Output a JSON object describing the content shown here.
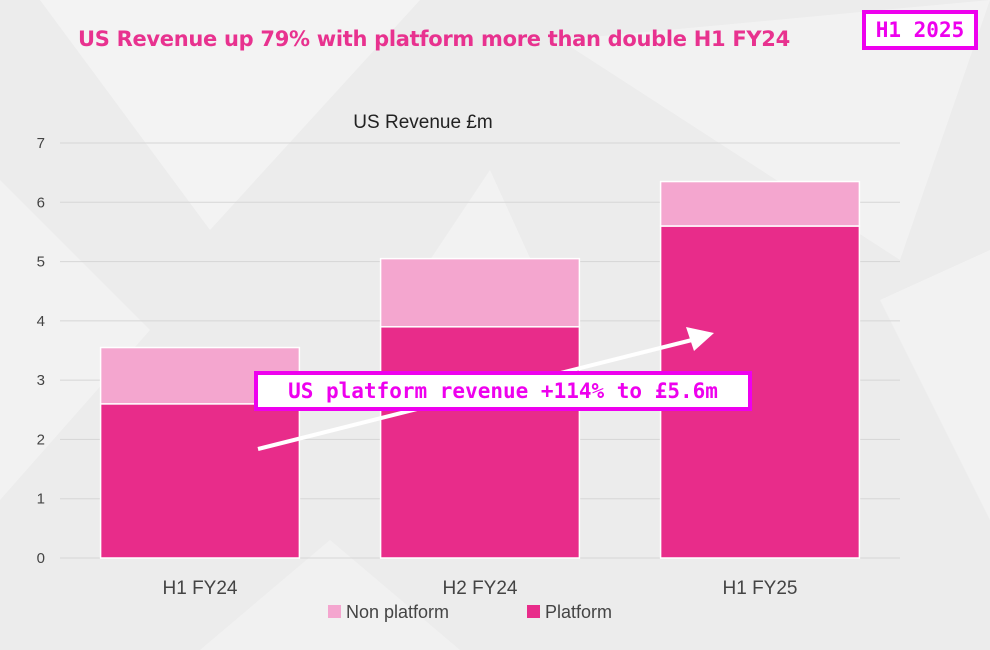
{
  "headline": "US Revenue up 79% with platform more than double H1 FY24",
  "period_badge": "H1 2025",
  "annotation": "US platform revenue +114% to £5.6m",
  "colors": {
    "accent": "#e8328f",
    "platform": "#e82c8a",
    "non_platform": "#f4a6cf",
    "badge_border": "#ee00ee"
  },
  "chart_data": {
    "type": "bar",
    "stacked": true,
    "title": "US Revenue £m",
    "xlabel": "",
    "ylabel": "",
    "categories": [
      "H1 FY24",
      "H2 FY24",
      "H1 FY25"
    ],
    "series": [
      {
        "name": "Platform",
        "values": [
          2.6,
          3.9,
          5.6
        ],
        "color": "#e82c8a"
      },
      {
        "name": "Non platform",
        "values": [
          0.95,
          1.15,
          0.75
        ],
        "color": "#f4a6cf"
      }
    ],
    "ylim": [
      0,
      7
    ],
    "yticks": [
      0,
      1,
      2,
      3,
      4,
      5,
      6,
      7
    ],
    "grid": true,
    "legend": {
      "position": "bottom",
      "entries": [
        {
          "label": "Non platform",
          "color": "#f4a6cf"
        },
        {
          "label": "Platform",
          "color": "#e82c8a"
        }
      ]
    }
  }
}
